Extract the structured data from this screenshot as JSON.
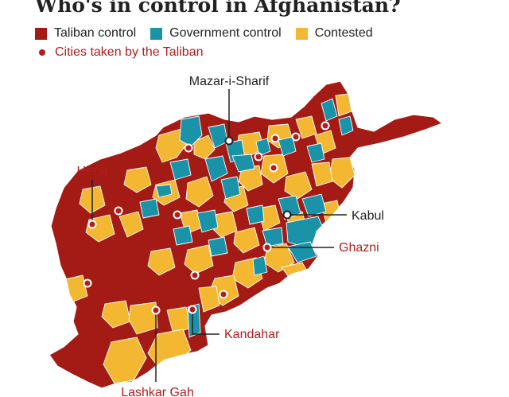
{
  "title": "Who's in control in Afghanistan?",
  "legend": {
    "taliban": {
      "label": "Taliban control",
      "color": "#a31b14"
    },
    "government": {
      "label": "Government control",
      "color": "#1a93a8"
    },
    "contested": {
      "label": "Contested",
      "color": "#f3b731"
    },
    "cities_taken": {
      "label": "Cities taken by the Taliban",
      "color": "#b01e1e"
    }
  },
  "labeled_cities": {
    "mazar": {
      "name": "Mazar-i-Sharif",
      "taken": false
    },
    "herat": {
      "name": "Herat",
      "taken": true
    },
    "kabul": {
      "name": "Kabul",
      "taken": false
    },
    "ghazni": {
      "name": "Ghazni",
      "taken": true
    },
    "kandahar": {
      "name": "Kandahar",
      "taken": true
    },
    "lashkar_gah": {
      "name": "Lashkar Gah",
      "taken": true
    }
  }
}
